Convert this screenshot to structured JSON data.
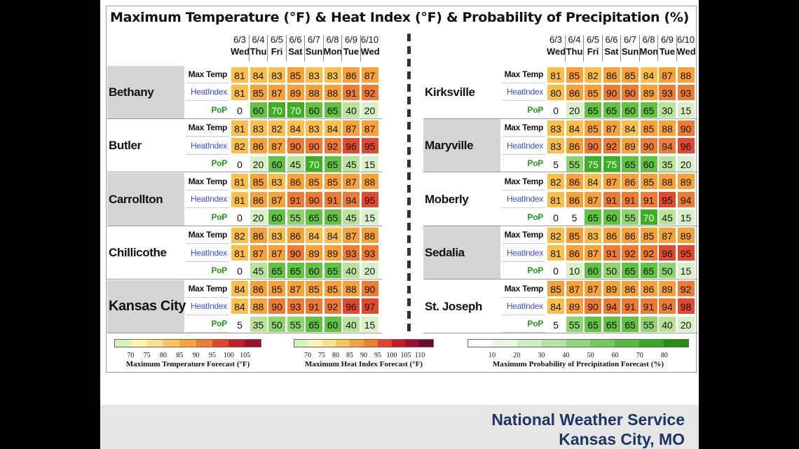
{
  "title": "Maximum Temperature (°F) & Heat Index (°F) & Probability of Precipitation (%)",
  "dates": [
    "6/3",
    "6/4",
    "6/5",
    "6/6",
    "6/7",
    "6/8",
    "6/9",
    "6/10"
  ],
  "days": [
    "Wed",
    "Thu",
    "Fri",
    "Sat",
    "Sun",
    "Mon",
    "Tue",
    "Wed"
  ],
  "row_labels": {
    "max": "Max Temp",
    "heat": "HeatIndex",
    "pop": "PoP"
  },
  "cities_left": [
    {
      "name": "Bethany",
      "max": [
        81,
        84,
        83,
        85,
        83,
        83,
        86,
        87
      ],
      "heat": [
        81,
        85,
        87,
        89,
        88,
        88,
        91,
        92
      ],
      "pop": [
        0,
        60,
        70,
        70,
        60,
        65,
        40,
        20
      ]
    },
    {
      "name": "Butler",
      "max": [
        81,
        83,
        82,
        84,
        83,
        84,
        87,
        87
      ],
      "heat": [
        82,
        86,
        87,
        90,
        90,
        92,
        96,
        95
      ],
      "pop": [
        0,
        20,
        60,
        45,
        70,
        65,
        45,
        15
      ]
    },
    {
      "name": "Carrollton",
      "max": [
        81,
        85,
        83,
        86,
        85,
        85,
        87,
        88
      ],
      "heat": [
        81,
        86,
        87,
        91,
        90,
        91,
        94,
        95
      ],
      "pop": [
        0,
        20,
        60,
        55,
        65,
        65,
        45,
        15
      ]
    },
    {
      "name": "Chillicothe",
      "max": [
        82,
        86,
        83,
        86,
        84,
        84,
        87,
        88
      ],
      "heat": [
        81,
        87,
        87,
        90,
        89,
        89,
        93,
        93
      ],
      "pop": [
        0,
        45,
        65,
        65,
        60,
        65,
        40,
        20
      ]
    },
    {
      "name": "Kansas City",
      "max": [
        84,
        86,
        85,
        87,
        85,
        85,
        88,
        90
      ],
      "heat": [
        84,
        88,
        90,
        93,
        91,
        92,
        96,
        97
      ],
      "pop": [
        5,
        35,
        50,
        55,
        65,
        60,
        40,
        15
      ]
    }
  ],
  "cities_right": [
    {
      "name": "Kirksville",
      "max": [
        81,
        85,
        82,
        86,
        85,
        84,
        87,
        88
      ],
      "heat": [
        80,
        86,
        85,
        90,
        90,
        89,
        93,
        93
      ],
      "pop": [
        0,
        20,
        65,
        65,
        60,
        65,
        30,
        15
      ]
    },
    {
      "name": "Maryville",
      "max": [
        83,
        84,
        85,
        87,
        84,
        85,
        88,
        90
      ],
      "heat": [
        83,
        86,
        90,
        92,
        89,
        90,
        94,
        96
      ],
      "pop": [
        5,
        55,
        75,
        75,
        65,
        60,
        35,
        20
      ]
    },
    {
      "name": "Moberly",
      "max": [
        82,
        86,
        84,
        87,
        86,
        85,
        88,
        89
      ],
      "heat": [
        81,
        86,
        87,
        91,
        91,
        91,
        95,
        94
      ],
      "pop": [
        0,
        5,
        65,
        60,
        55,
        70,
        45,
        15
      ]
    },
    {
      "name": "Sedalia",
      "max": [
        82,
        85,
        83,
        86,
        86,
        85,
        87,
        89
      ],
      "heat": [
        81,
        86,
        87,
        91,
        92,
        92,
        96,
        95
      ],
      "pop": [
        0,
        10,
        60,
        50,
        65,
        65,
        50,
        15
      ]
    },
    {
      "name": "St. Joseph",
      "max": [
        85,
        87,
        87,
        89,
        86,
        86,
        89,
        92
      ],
      "heat": [
        84,
        89,
        90,
        94,
        91,
        91,
        94,
        98
      ],
      "pop": [
        5,
        55,
        65,
        65,
        65,
        55,
        40,
        20
      ]
    }
  ],
  "legends": [
    {
      "caption": "Maximum Temperature Forecast (°F)",
      "ticks": [
        "70",
        "75",
        "80",
        "85",
        "90",
        "95",
        "100",
        "105"
      ],
      "colors": [
        "#d7f3b8",
        "#fff4b0",
        "#ffe08a",
        "#ffc35c",
        "#f9a23a",
        "#f27d2c",
        "#e0472a",
        "#c41e24",
        "#9b0f2a"
      ]
    },
    {
      "caption": "Maximum Heat Index Forecast (°F)",
      "ticks": [
        "70",
        "75",
        "80",
        "85",
        "90",
        "95",
        "100",
        "105",
        "110"
      ],
      "colors": [
        "#d7f3b8",
        "#fff4b0",
        "#ffe08a",
        "#ffc35c",
        "#f9a23a",
        "#f27d2c",
        "#e0472a",
        "#c41e24",
        "#9b0f2a",
        "#6e0a2a"
      ]
    },
    {
      "caption": "Maximum Probability of Precipitation Forecast (%)",
      "ticks": [
        "10",
        "20",
        "30",
        "40",
        "50",
        "60",
        "70",
        "80"
      ],
      "colors": [
        "#ffffff",
        "#e6f6df",
        "#cdeec0",
        "#b2e49f",
        "#92d87a",
        "#72cb58",
        "#52bc38",
        "#37a81f",
        "#238f10"
      ]
    }
  ],
  "footer": {
    "line1": "National Weather Service",
    "line2": "Kansas City, MO"
  }
}
